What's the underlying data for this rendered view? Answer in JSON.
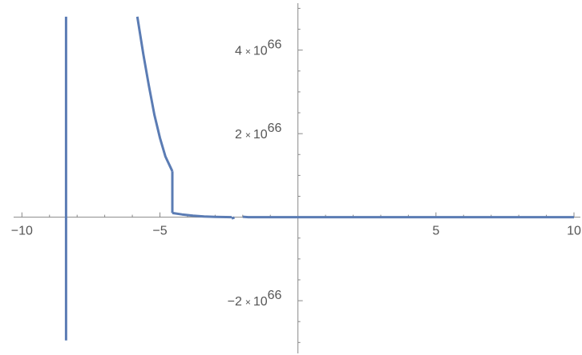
{
  "chart_data": {
    "type": "line",
    "title": "",
    "xlabel": "",
    "ylabel": "",
    "xlim": [
      -10.3,
      10.0
    ],
    "ylim": [
      -3.3e+66,
      5.2e+66
    ],
    "grid": false,
    "x_ticks": [
      {
        "value": -10,
        "label": "−10"
      },
      {
        "value": -5,
        "label": "−5"
      },
      {
        "value": 5,
        "label": "5"
      },
      {
        "value": 10,
        "label": "10"
      }
    ],
    "y_ticks": [
      {
        "value": 4e+66,
        "mantissa": "4",
        "times": "×",
        "base": "10",
        "exponent": "66"
      },
      {
        "value": 2e+66,
        "mantissa": "2",
        "times": "×",
        "base": "10",
        "exponent": "66"
      },
      {
        "value": -2e+66,
        "mantissa": "−2",
        "times": "×",
        "base": "10",
        "exponent": "66"
      }
    ],
    "series": [
      {
        "color": "#5b7cb4",
        "segments": [
          [
            [
              -8.4,
              4.8e+66
            ],
            [
              -8.4,
              -2.95e+66
            ]
          ],
          [
            [
              -5.82,
              4.8e+66
            ],
            [
              -5.6,
              3.9e+66
            ],
            [
              -5.4,
              3.15e+66
            ],
            [
              -5.2,
              2.45e+66
            ],
            [
              -5.0,
              1.9e+66
            ],
            [
              -4.8,
              1.45e+66
            ],
            [
              -4.55,
              1.1e+66
            ]
          ],
          [
            [
              -4.55,
              1.1e+66
            ],
            [
              -4.55,
              1e+65
            ]
          ],
          [
            [
              -4.55,
              1e+65
            ],
            [
              -4.2,
              6.5e+64
            ],
            [
              -3.8,
              3.5e+64
            ],
            [
              -3.4,
              1.8e+64
            ],
            [
              -3.0,
              8e+63
            ],
            [
              -2.4,
              0.0
            ]
          ],
          [
            [
              -2.4,
              -3e+64
            ],
            [
              -2.3,
              -1e+64
            ]
          ],
          [
            [
              -2.0,
              1e+64
            ],
            [
              -1.8,
              0.0
            ],
            [
              10.0,
              0.0
            ]
          ]
        ]
      }
    ]
  }
}
